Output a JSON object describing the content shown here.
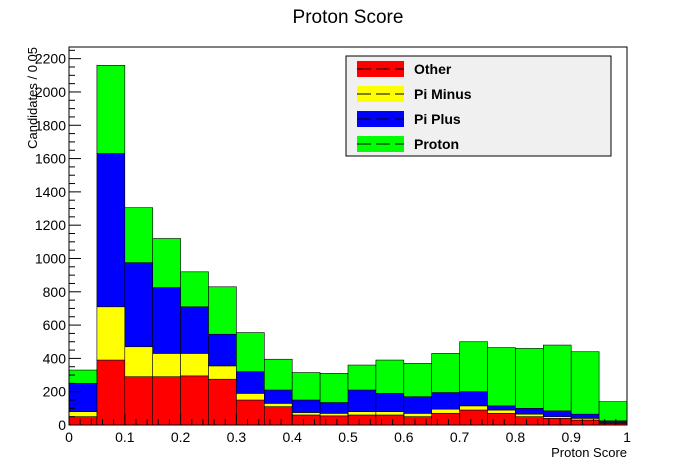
{
  "chart_data": {
    "type": "bar",
    "stacked": true,
    "title": "Proton Score",
    "xlabel": "Proton Score",
    "ylabel": "Candidates / 0.05",
    "xlim": [
      0,
      1
    ],
    "ylim": [
      0,
      2270
    ],
    "bin_width": 0.05,
    "bins": [
      0.0,
      0.05,
      0.1,
      0.15,
      0.2,
      0.25,
      0.3,
      0.35,
      0.4,
      0.45,
      0.5,
      0.55,
      0.6,
      0.65,
      0.7,
      0.75,
      0.8,
      0.85,
      0.9,
      0.95
    ],
    "x_ticks": [
      "0",
      "0.1",
      "0.2",
      "0.3",
      "0.4",
      "0.5",
      "0.6",
      "0.7",
      "0.8",
      "0.9",
      "1"
    ],
    "y_ticks": [
      "0",
      "200",
      "400",
      "600",
      "800",
      "1000",
      "1200",
      "1400",
      "1600",
      "1800",
      "2000",
      "2200"
    ],
    "grid": false,
    "legend_position": "top-right",
    "series": [
      {
        "name": "Other",
        "color": "#ff0000",
        "values": [
          50,
          390,
          290,
          290,
          295,
          275,
          150,
          110,
          60,
          55,
          60,
          60,
          50,
          70,
          90,
          70,
          50,
          40,
          30,
          10
        ]
      },
      {
        "name": "Pi Minus",
        "color": "#ffff00",
        "values": [
          30,
          320,
          180,
          140,
          135,
          80,
          40,
          20,
          15,
          15,
          20,
          20,
          20,
          25,
          25,
          20,
          15,
          10,
          10,
          5
        ]
      },
      {
        "name": "Pi Plus",
        "color": "#0000ff",
        "values": [
          170,
          920,
          505,
          395,
          280,
          190,
          130,
          80,
          75,
          65,
          130,
          110,
          100,
          100,
          85,
          25,
          35,
          35,
          25,
          10
        ]
      },
      {
        "name": "Proton",
        "color": "#00ff00",
        "values": [
          80,
          530,
          330,
          295,
          210,
          285,
          235,
          185,
          165,
          175,
          150,
          200,
          200,
          235,
          300,
          350,
          360,
          395,
          375,
          115
        ]
      }
    ]
  }
}
